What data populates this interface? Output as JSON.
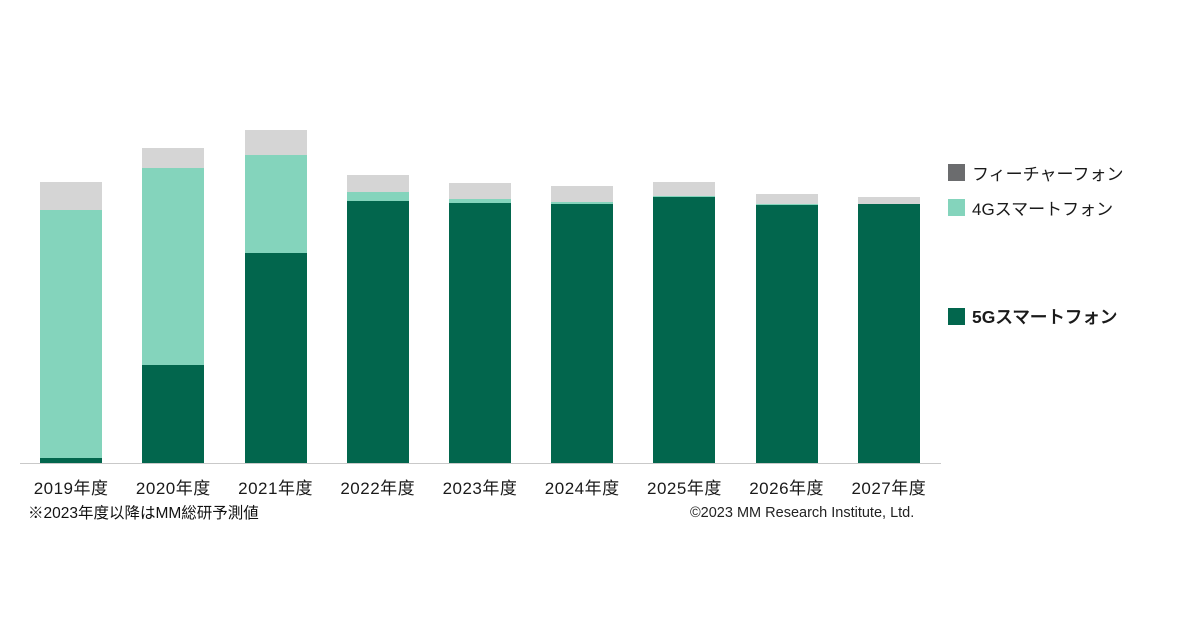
{
  "chart_data": {
    "type": "bar",
    "stacked": true,
    "title": "",
    "xlabel": "",
    "ylabel": "",
    "grid": false,
    "legend_position": "right",
    "value_note": "relative units estimated from bar heights; no y-axis shown in image (FY2021 total = 100)",
    "ylim": [
      0,
      110
    ],
    "categories": [
      "2019年度",
      "2020年度",
      "2021年度",
      "2022年度",
      "2023年度",
      "2024年度",
      "2025年度",
      "2026年度",
      "2027年度"
    ],
    "series": [
      {
        "name": "フィーチャーフォン",
        "color": "#d5d5d5",
        "legend_color": "#6b6c6e",
        "values": [
          8.4,
          6.0,
          7.5,
          5.1,
          4.8,
          4.8,
          4.2,
          3.0,
          2.1
        ]
      },
      {
        "name": "4Gスマートフォン",
        "color": "#84d4bc",
        "legend_color": "#84d4bc",
        "values": [
          74.5,
          59.2,
          29.4,
          2.7,
          1.2,
          0.6,
          0.3,
          0.3,
          0.0
        ]
      },
      {
        "name": "5Gスマートフォン",
        "color": "#02664d",
        "legend_color": "#02664d",
        "values": [
          1.5,
          29.4,
          63.1,
          78.7,
          78.1,
          77.8,
          79.9,
          77.5,
          77.8
        ]
      }
    ]
  },
  "footnote": "※2023年度以降はMM総研予測値",
  "copyright": "©2023 MM Research Institute, Ltd."
}
